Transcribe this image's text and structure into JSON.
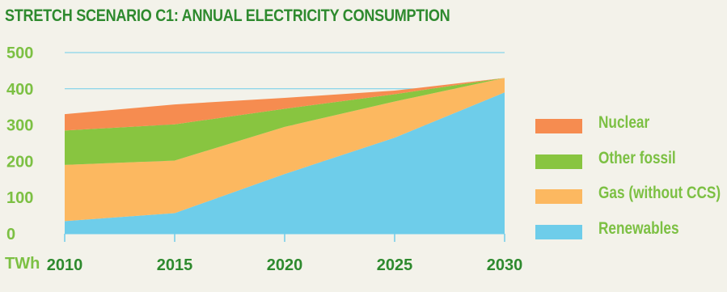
{
  "chart_data": {
    "type": "area",
    "stacked": true,
    "title": "STRETCH SCENARIO C1: ANNUAL ELECTRICITY CONSUMPTION",
    "unit_label": "TWh",
    "x": [
      "2010",
      "2015",
      "2020",
      "2025",
      "2030"
    ],
    "ylim": [
      0,
      500
    ],
    "yticks": [
      "500",
      "400",
      "300",
      "200",
      "100",
      "0"
    ],
    "ytick_values": [
      500,
      400,
      300,
      200,
      100,
      0
    ],
    "series": [
      {
        "name": "Renewables",
        "color": "#6ecdea",
        "values": [
          35,
          57,
          165,
          265,
          390
        ]
      },
      {
        "name": "Gas (without CCS)",
        "color": "#fcb860",
        "values": [
          155,
          145,
          130,
          100,
          40
        ]
      },
      {
        "name": "Other fossil",
        "color": "#88c540",
        "values": [
          95,
          100,
          50,
          20,
          0
        ]
      },
      {
        "name": "Nuclear",
        "color": "#f68c50",
        "values": [
          45,
          55,
          30,
          10,
          0
        ]
      }
    ],
    "legend_order": [
      "Nuclear",
      "Other fossil",
      "Gas (without CCS)",
      "Renewables"
    ],
    "legend_position": "right",
    "gridline_color": "#6ecdea"
  }
}
